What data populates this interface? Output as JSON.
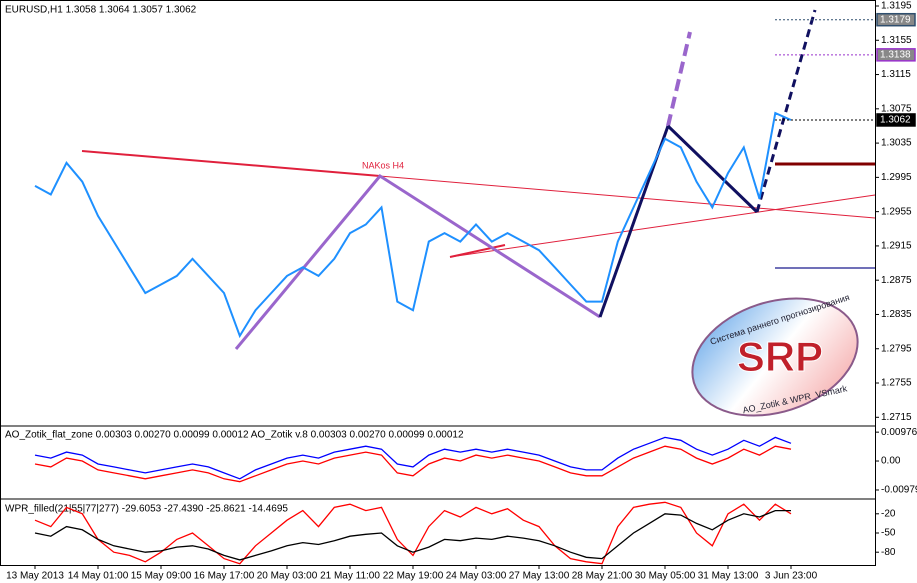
{
  "chart_data": [
    {
      "type": "line",
      "title": "EURUSD,H1  1.3058 1.3064 1.3057 1.3062",
      "annotation": "NAKos H4",
      "categories": [
        "13 May 2013",
        null,
        null,
        null,
        "14 May 01:00",
        null,
        null,
        null,
        "15 May 09:00",
        null,
        null,
        null,
        "16 May 17:00",
        null,
        null,
        null,
        "20 May 03:00",
        null,
        null,
        null,
        "21 May 11:00",
        null,
        null,
        null,
        "22 May 19:00",
        null,
        null,
        null,
        "24 May 03:00",
        null,
        null,
        null,
        "27 May 13:00",
        null,
        null,
        null,
        "28 May 21:00",
        null,
        null,
        null,
        "30 May 05:00",
        null,
        null,
        null,
        "31 May 13:00",
        null,
        null,
        null,
        "3 Jun 23:00",
        null
      ],
      "series": [
        {
          "color": "#1e90ff",
          "values": [
            1.2985,
            1.2975,
            1.3012,
            1.299,
            1.295,
            1.292,
            1.289,
            1.286,
            1.287,
            1.288,
            1.29,
            1.288,
            1.286,
            1.281,
            1.284,
            1.286,
            1.288,
            1.289,
            1.288,
            1.29,
            1.293,
            1.294,
            1.296,
            1.285,
            1.284,
            1.292,
            1.293,
            1.292,
            1.294,
            1.292,
            1.293,
            1.292,
            1.291,
            1.289,
            1.287,
            1.285,
            1.285,
            1.292,
            1.296,
            1.3,
            1.304,
            1.303,
            1.299,
            1.296,
            1.3,
            1.303,
            1.297,
            1.307,
            1.3062,
            null
          ]
        }
      ],
      "ylim": [
        1.2706,
        1.3202
      ],
      "yticks": [
        1.3195,
        1.3155,
        1.3115,
        1.3075,
        1.3035,
        1.2995,
        1.2955,
        1.2915,
        1.2875,
        1.2835,
        1.2795,
        1.2755,
        1.2715
      ],
      "marked_levels": [
        {
          "value": 1.3179,
          "color": "#2f4f6f"
        },
        {
          "value": 1.3138,
          "color": "#9932cc"
        },
        {
          "value": 1.3062,
          "color": "#000000"
        }
      ]
    },
    {
      "type": "line",
      "title": "AO_Zotik_flat_zone 0.00303 0.00270 0.00099 0.00012  AO_Zotik v.8 0.00303 0.00270 0.00099 0.00012",
      "series": [
        {
          "color": "#0000ff",
          "values": [
            0.002,
            0.001,
            0.003,
            0.002,
            -0.001,
            -0.002,
            -0.003,
            -0.004,
            -0.003,
            -0.002,
            -0.001,
            -0.002,
            -0.004,
            -0.006,
            -0.003,
            -0.001,
            0.001,
            0.002,
            0.001,
            0.003,
            0.004,
            0.005,
            0.004,
            -0.001,
            -0.002,
            0.002,
            0.004,
            0.003,
            0.004,
            0.003,
            0.004,
            0.003,
            0.002,
            0,
            -0.002,
            -0.003,
            -0.003,
            0.001,
            0.004,
            0.006,
            0.008,
            0.007,
            0.004,
            0.002,
            0.004,
            0.007,
            0.005,
            0.008,
            0.006,
            null
          ]
        },
        {
          "color": "#ff0000",
          "values": [
            -0.001,
            -0.002,
            0.001,
            0,
            -0.003,
            -0.004,
            -0.005,
            -0.006,
            -0.005,
            -0.004,
            -0.003,
            -0.004,
            -0.006,
            -0.007,
            -0.005,
            -0.003,
            -0.001,
            0,
            -0.001,
            0.001,
            0.002,
            0.003,
            0.002,
            -0.004,
            -0.005,
            -0.001,
            0.001,
            0,
            0.002,
            0.001,
            0.002,
            0.001,
            0,
            -0.002,
            -0.004,
            -0.005,
            -0.005,
            -0.002,
            0.001,
            0.003,
            0.005,
            0.004,
            0.001,
            -0.001,
            0.001,
            0.004,
            0.002,
            0.005,
            0.004,
            null
          ]
        }
      ],
      "ylim": [
        -0.0125,
        0.0115
      ],
      "yticks": [
        0.00976,
        {
          "value": 0,
          "label": "0.00"
        },
        -0.00979
      ]
    },
    {
      "type": "line",
      "title": "WPR_filled(21|55|77|277) -29.6053 -27.4390 -25.8621 -14.4695",
      "series": [
        {
          "color": "#ff0000",
          "values": [
            -30,
            -40,
            -10,
            -20,
            -60,
            -80,
            -85,
            -95,
            -80,
            -60,
            -50,
            -70,
            -90,
            -98,
            -70,
            -50,
            -30,
            -15,
            -40,
            -10,
            -5,
            -15,
            -10,
            -60,
            -85,
            -40,
            -15,
            -25,
            -10,
            -20,
            -12,
            -30,
            -40,
            -70,
            -90,
            -95,
            -98,
            -40,
            -10,
            -5,
            -2,
            -10,
            -50,
            -70,
            -20,
            -5,
            -30,
            -5,
            -20,
            null
          ]
        },
        {
          "color": "#000000",
          "values": [
            -50,
            -55,
            -40,
            -45,
            -60,
            -70,
            -75,
            -80,
            -78,
            -72,
            -70,
            -75,
            -85,
            -92,
            -85,
            -78,
            -70,
            -65,
            -68,
            -62,
            -55,
            -52,
            -50,
            -70,
            -80,
            -72,
            -60,
            -62,
            -58,
            -60,
            -55,
            -58,
            -62,
            -70,
            -80,
            -88,
            -90,
            -70,
            -50,
            -35,
            -20,
            -22,
            -35,
            -45,
            -30,
            -20,
            -25,
            -15,
            -15,
            null
          ]
        }
      ],
      "ylim": [
        -100,
        0
      ],
      "yticks": [
        -20,
        -50,
        -80
      ]
    }
  ],
  "logo": {
    "caption": "Система раннего прогнозирования",
    "name": "SRP",
    "footer": "AO_Zotik & WPR_VSmark"
  }
}
